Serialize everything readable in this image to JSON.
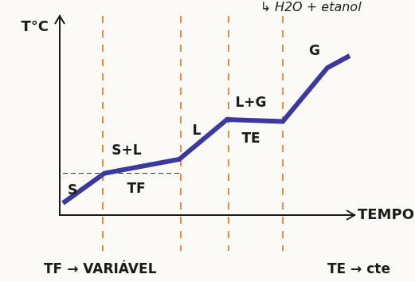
{
  "chart_data": {
    "type": "line",
    "title": "↳ H2O + etanol",
    "x_label": "TEMPO",
    "y_label": "T°C",
    "x": [
      0.1,
      1.4,
      3.75,
      5.25,
      7.0,
      8.4,
      9.1
    ],
    "values": [
      0.6,
      2.1,
      2.8,
      4.8,
      4.7,
      7.4,
      8.0
    ],
    "color": "#3b3a9c",
    "xlim": [
      0,
      9.25
    ],
    "ylim": [
      0,
      10
    ],
    "tick_labels": false,
    "grid": false,
    "phase_boundaries": [
      1.35,
      3.8,
      5.3,
      7.0
    ],
    "reference_lines": [
      {
        "x": [
          0.1,
          3.75
        ],
        "y": [
          2.1,
          2.1
        ]
      }
    ],
    "annotations": [
      {
        "text": "S",
        "x": 0.4,
        "y": 1.2
      },
      {
        "text": "S+L",
        "x": 2.1,
        "y": 3.2
      },
      {
        "text": "TF",
        "x": 2.4,
        "y": 1.3
      },
      {
        "text": "L",
        "x": 4.3,
        "y": 4.2
      },
      {
        "text": "L+G",
        "x": 6.0,
        "y": 5.6
      },
      {
        "text": "TE",
        "x": 6.0,
        "y": 3.8
      },
      {
        "text": "G",
        "x": 8.0,
        "y": 8.2
      }
    ],
    "notes": [
      "TF → VARIÁVEL",
      "TE → cte"
    ]
  }
}
